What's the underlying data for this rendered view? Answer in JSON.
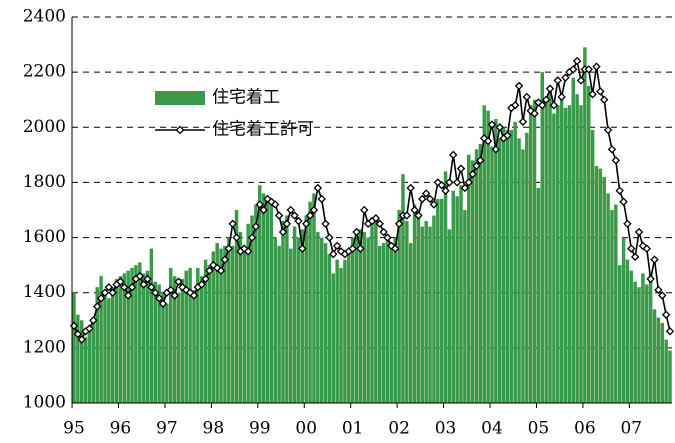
{
  "chart_data": {
    "type": "bar-line",
    "categories": [
      "95",
      null,
      null,
      null,
      null,
      null,
      null,
      null,
      null,
      null,
      null,
      null,
      "96",
      null,
      null,
      null,
      null,
      null,
      null,
      null,
      null,
      null,
      null,
      null,
      "97",
      null,
      null,
      null,
      null,
      null,
      null,
      null,
      null,
      null,
      null,
      null,
      "98",
      null,
      null,
      null,
      null,
      null,
      null,
      null,
      null,
      null,
      null,
      null,
      "99",
      null,
      null,
      null,
      null,
      null,
      null,
      null,
      null,
      null,
      null,
      null,
      "00",
      null,
      null,
      null,
      null,
      null,
      null,
      null,
      null,
      null,
      null,
      null,
      "01",
      null,
      null,
      null,
      null,
      null,
      null,
      null,
      null,
      null,
      null,
      null,
      "02",
      null,
      null,
      null,
      null,
      null,
      null,
      null,
      null,
      null,
      null,
      null,
      "03",
      null,
      null,
      null,
      null,
      null,
      null,
      null,
      null,
      null,
      null,
      null,
      "04",
      null,
      null,
      null,
      null,
      null,
      null,
      null,
      null,
      null,
      null,
      null,
      "05",
      null,
      null,
      null,
      null,
      null,
      null,
      null,
      null,
      null,
      null,
      null,
      "06",
      null,
      null,
      null,
      null,
      null,
      null,
      null,
      null,
      null,
      null,
      null,
      "07",
      null,
      null,
      null,
      null,
      null,
      null,
      null,
      null,
      null,
      null
    ],
    "series": [
      {
        "name": "住宅着工",
        "kind": "bar",
        "color": "#3a9a4a",
        "values": [
          1400,
          1320,
          1300,
          1240,
          1280,
          1290,
          1420,
          1460,
          1400,
          1380,
          1420,
          1450,
          1460,
          1470,
          1480,
          1490,
          1500,
          1510,
          1470,
          1480,
          1560,
          1440,
          1430,
          1400,
          1360,
          1490,
          1460,
          1400,
          1450,
          1480,
          1490,
          1410,
          1490,
          1460,
          1520,
          1500,
          1550,
          1580,
          1560,
          1570,
          1600,
          1570,
          1700,
          1620,
          1560,
          1650,
          1680,
          1720,
          1790,
          1760,
          1750,
          1720,
          1600,
          1570,
          1660,
          1680,
          1560,
          1640,
          1600,
          1630,
          1680,
          1730,
          1760,
          1620,
          1600,
          1580,
          1540,
          1470,
          1520,
          1490,
          1520,
          1560,
          1600,
          1620,
          1630,
          1620,
          1600,
          1660,
          1670,
          1570,
          1580,
          1590,
          1580,
          1600,
          1700,
          1830,
          1660,
          1580,
          1720,
          1700,
          1640,
          1660,
          1640,
          1680,
          1740,
          1740,
          1840,
          1630,
          1770,
          1750,
          1790,
          1700,
          1900,
          1880,
          1920,
          1940,
          2080,
          2060,
          1930,
          2030,
          1960,
          2000,
          1990,
          1990,
          2020,
          1960,
          1920,
          1980,
          2080,
          2100,
          1780,
          2200,
          2100,
          2150,
          2050,
          2080,
          2100,
          2070,
          2080,
          2180,
          2120,
          2080,
          2290,
          2150,
          1990,
          1860,
          1850,
          1820,
          1760,
          1700,
          1720,
          1500,
          1600,
          1520,
          1480,
          1440,
          1420,
          1470,
          1430,
          1470,
          1340,
          1310,
          1290,
          1230,
          1190
        ]
      },
      {
        "name": "住宅着工許可",
        "kind": "line",
        "color": "#000000",
        "values": [
          1280,
          1250,
          1230,
          1260,
          1270,
          1300,
          1350,
          1380,
          1400,
          1420,
          1400,
          1430,
          1440,
          1420,
          1390,
          1420,
          1450,
          1460,
          1430,
          1450,
          1420,
          1400,
          1380,
          1360,
          1400,
          1410,
          1390,
          1440,
          1420,
          1410,
          1400,
          1390,
          1420,
          1430,
          1450,
          1480,
          1500,
          1490,
          1480,
          1520,
          1560,
          1650,
          1600,
          1550,
          1560,
          1550,
          1600,
          1640,
          1720,
          1700,
          1740,
          1730,
          1720,
          1680,
          1620,
          1650,
          1700,
          1680,
          1660,
          1560,
          1650,
          1680,
          1700,
          1780,
          1740,
          1650,
          1600,
          1540,
          1570,
          1550,
          1540,
          1550,
          1560,
          1620,
          1560,
          1700,
          1650,
          1660,
          1670,
          1650,
          1620,
          1600,
          1570,
          1560,
          1650,
          1680,
          1680,
          1780,
          1700,
          1680,
          1740,
          1760,
          1740,
          1720,
          1800,
          1790,
          1770,
          1800,
          1900,
          1800,
          1850,
          1780,
          1800,
          1830,
          1860,
          1880,
          1960,
          1950,
          2010,
          1920,
          2000,
          1960,
          1970,
          2070,
          2080,
          2150,
          2020,
          2110,
          2060,
          2050,
          2090,
          2080,
          2100,
          2140,
          2080,
          2170,
          2110,
          2180,
          2200,
          2210,
          2240,
          2170,
          2210,
          2210,
          2120,
          2220,
          2130,
          2100,
          1990,
          1920,
          1880,
          1770,
          1730,
          1650,
          1560,
          1530,
          1620,
          1570,
          1560,
          1450,
          1520,
          1410,
          1390,
          1320,
          1260
        ]
      }
    ],
    "ylim": [
      1000,
      2400
    ],
    "yticks": [
      1000,
      1200,
      1400,
      1600,
      1800,
      2000,
      2200,
      2400
    ],
    "grid": true
  }
}
